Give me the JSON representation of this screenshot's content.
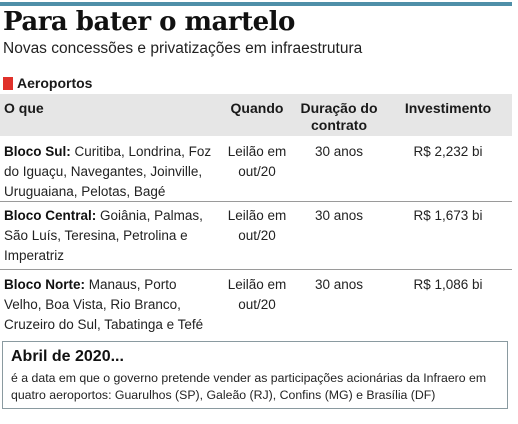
{
  "title": "Para bater o martelo",
  "subtitle": "Novas concessões e privatizações em infraestrutura",
  "section": "Aeroportos",
  "colors": {
    "rule": "#4f8fa8",
    "section_marker": "#e0312b",
    "header_band": "#e6e6e6"
  },
  "table": {
    "headers": {
      "what": "O que",
      "when": "Quando",
      "duration": "Duração do contrato",
      "investment": "Investimento"
    },
    "rows": [
      {
        "name": "Bloco Sul:",
        "airports": "Curitiba, Londrina, Foz do Iguaçu, Navegantes, Joinville, Uruguaiana, Pelotas, Bagé",
        "when": "Leilão em out/20",
        "duration": "30 anos",
        "investment": "R$ 2,232 bi"
      },
      {
        "name": "Bloco Central:",
        "airports": "Goiânia, Palmas, São Luís, Teresina, Petrolina e Imperatriz",
        "when": "Leilão em out/20",
        "duration": "30 anos",
        "investment": "R$ 1,673 bi"
      },
      {
        "name": "Bloco Norte:",
        "airports": "Manaus, Porto Velho, Boa Vista, Rio Branco, Cruzeiro do Sul, Tabatinga e Tefé",
        "when": "Leilão em out/20",
        "duration": "30 anos",
        "investment": "R$ 1,086 bi"
      }
    ]
  },
  "note": {
    "title": "Abril de 2020...",
    "text": "é a data em que o governo pretende vender as participações acionárias da Infraero em quatro aeroportos: Guarulhos (SP), Galeão (RJ), Confins (MG) e Brasília (DF)"
  }
}
